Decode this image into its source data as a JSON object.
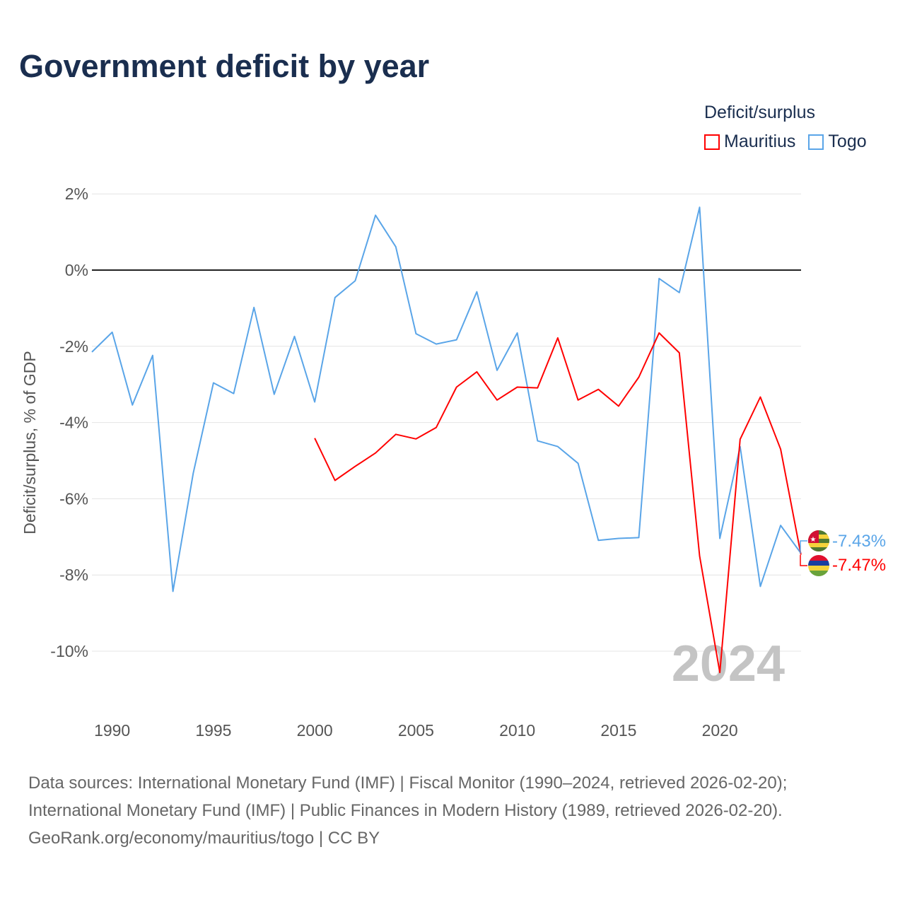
{
  "title": "Government deficit by year",
  "legend": {
    "title": "Deficit/surplus",
    "items": [
      {
        "name": "Mauritius",
        "color": "#ff0000"
      },
      {
        "name": "Togo",
        "color": "#5aa5e8"
      }
    ]
  },
  "year_watermark": "2024",
  "end_labels": {
    "togo": "-7.43%",
    "mauritius": "-7.47%"
  },
  "footer": {
    "line1": "Data sources: International Monetary Fund (IMF) | Fiscal Monitor (1990–2024, retrieved 2026-02-20);",
    "line2": "International Monetary Fund (IMF) | Public Finances in Modern History (1989, retrieved 2026-02-20).",
    "line3": "GeoRank.org/economy/mauritius/togo | CC BY"
  },
  "chart_data": {
    "type": "line",
    "title": "Government deficit by year",
    "ylabel": "Deficit/surplus, % of GDP",
    "xlabel": "",
    "xlim": [
      1989,
      2024
    ],
    "ylim": [
      -11.5,
      2.5
    ],
    "yticks": [
      2,
      0,
      -2,
      -4,
      -6,
      -8,
      -10
    ],
    "ytick_labels": [
      "2%",
      "0%",
      "-2%",
      "-4%",
      "-6%",
      "-8%",
      "-10%"
    ],
    "xticks": [
      1990,
      1995,
      2000,
      2005,
      2010,
      2015,
      2020
    ],
    "xtick_labels": [
      "1990",
      "1995",
      "2000",
      "2005",
      "2010",
      "2015",
      "2020"
    ],
    "series": [
      {
        "name": "Togo",
        "color": "#5aa5e8",
        "x": [
          1989,
          1990,
          1991,
          1992,
          1993,
          1994,
          1995,
          1996,
          1997,
          1998,
          1999,
          2000,
          2001,
          2002,
          2003,
          2004,
          2005,
          2006,
          2007,
          2008,
          2009,
          2010,
          2011,
          2012,
          2013,
          2014,
          2015,
          2016,
          2017,
          2018,
          2019,
          2020,
          2021,
          2022,
          2023,
          2024
        ],
        "values": [
          -2.15,
          -1.63,
          -3.54,
          -2.24,
          -8.43,
          -5.33,
          -2.96,
          -3.24,
          -0.98,
          -3.26,
          -1.74,
          -3.46,
          -0.72,
          -0.28,
          1.44,
          0.61,
          -1.67,
          -1.94,
          -1.83,
          -0.57,
          -2.63,
          -1.65,
          -4.48,
          -4.63,
          -5.07,
          -7.09,
          -7.04,
          -7.02,
          -0.22,
          -0.59,
          1.65,
          -7.04,
          -4.63,
          -8.3,
          -6.7,
          -7.43
        ]
      },
      {
        "name": "Mauritius",
        "color": "#ff0000",
        "x": [
          2000,
          2001,
          2002,
          2003,
          2004,
          2005,
          2006,
          2007,
          2008,
          2009,
          2010,
          2011,
          2012,
          2013,
          2014,
          2015,
          2016,
          2017,
          2018,
          2019,
          2020,
          2021,
          2022,
          2023,
          2024
        ],
        "values": [
          -4.41,
          -5.52,
          -5.15,
          -4.8,
          -4.31,
          -4.43,
          -4.13,
          -3.07,
          -2.67,
          -3.41,
          -3.07,
          -3.09,
          -1.78,
          -3.41,
          -3.13,
          -3.57,
          -2.81,
          -1.65,
          -2.17,
          -7.5,
          -10.56,
          -4.44,
          -3.33,
          -4.7,
          -7.47
        ]
      }
    ]
  }
}
